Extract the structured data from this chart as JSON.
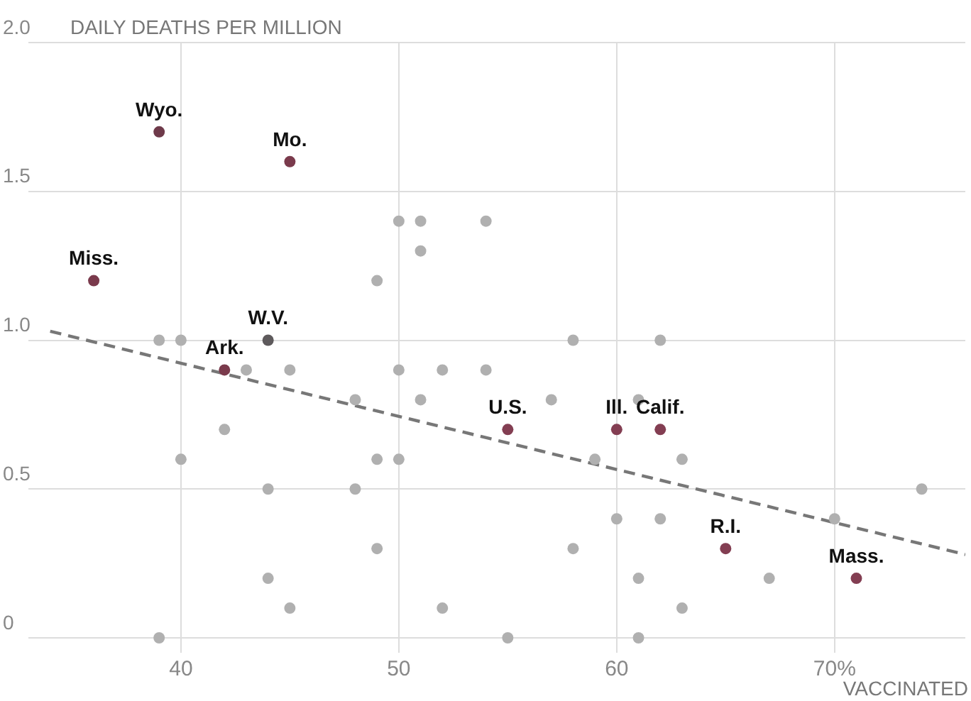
{
  "chart_data": {
    "type": "scatter",
    "ylabel": "DAILY DEATHS PER MILLION",
    "xlabel": "VACCINATED",
    "xlim": [
      33,
      76
    ],
    "ylim": [
      -0.05,
      2.0
    ],
    "xticks": [
      {
        "value": 40,
        "label": "40"
      },
      {
        "value": 50,
        "label": "50"
      },
      {
        "value": 60,
        "label": "60"
      },
      {
        "value": 70,
        "label": "70%"
      }
    ],
    "yticks": [
      {
        "value": 0,
        "label": "0"
      },
      {
        "value": 0.5,
        "label": "0.5"
      },
      {
        "value": 1,
        "label": "1.0"
      },
      {
        "value": 1.5,
        "label": "1.5"
      },
      {
        "value": 2,
        "label": "2.0"
      }
    ],
    "grid": true,
    "legend": false,
    "marker": "circle",
    "series": [
      {
        "color": "#b0b0b0",
        "x": [
          39,
          40,
          50,
          51,
          54,
          51,
          49,
          43,
          45,
          50,
          52,
          54,
          48,
          51,
          58,
          62,
          57,
          61,
          42,
          40,
          49,
          50,
          63,
          59,
          44,
          48,
          74,
          60,
          62,
          70,
          49,
          58,
          44,
          61,
          67,
          45,
          52,
          63,
          39,
          55,
          61
        ],
        "values": [
          1.0,
          1.0,
          1.4,
          1.4,
          1.4,
          1.3,
          1.2,
          0.9,
          0.9,
          0.9,
          0.9,
          0.9,
          0.8,
          0.8,
          1.0,
          1.0,
          0.8,
          0.8,
          0.7,
          0.6,
          0.6,
          0.6,
          0.6,
          0.6,
          0.5,
          0.5,
          0.5,
          0.4,
          0.4,
          0.4,
          0.3,
          0.3,
          0.2,
          0.2,
          0.2,
          0.1,
          0.1,
          0.1,
          0,
          0,
          0
        ]
      },
      {
        "x": [
          39,
          45,
          36,
          44,
          42,
          55,
          60,
          62,
          65,
          71
        ],
        "values": [
          1.7,
          1.6,
          1.2,
          1.0,
          0.9,
          0.7,
          0.7,
          0.7,
          0.3,
          0.2
        ],
        "colors": [
          "#6e3a4a",
          "#7a3a4c",
          "#7a3a4c",
          "#5e5a5c",
          "#7a3a4c",
          "#833e52",
          "#833e52",
          "#833e52",
          "#833e52",
          "#833e52"
        ]
      },
      {
        "type": "line",
        "x": [
          34,
          76
        ],
        "values": [
          1.03,
          0.28
        ],
        "color": "#777777",
        "line_style": "dashed",
        "marker": "none"
      }
    ],
    "annotations": [
      {
        "text": "Wyo.",
        "x": 39,
        "y": 1.7
      },
      {
        "text": "Mo.",
        "x": 45,
        "y": 1.6
      },
      {
        "text": "Miss.",
        "x": 36,
        "y": 1.2
      },
      {
        "text": "W.V.",
        "x": 44,
        "y": 1.0
      },
      {
        "text": "Ark.",
        "x": 42,
        "y": 0.9
      },
      {
        "text": "U.S.",
        "x": 55,
        "y": 0.7
      },
      {
        "text": "Ill.",
        "x": 60,
        "y": 0.7
      },
      {
        "text": "Calif.",
        "x": 62,
        "y": 0.7
      },
      {
        "text": "R.I.",
        "x": 65,
        "y": 0.3
      },
      {
        "text": "Mass.",
        "x": 71,
        "y": 0.2
      }
    ]
  }
}
